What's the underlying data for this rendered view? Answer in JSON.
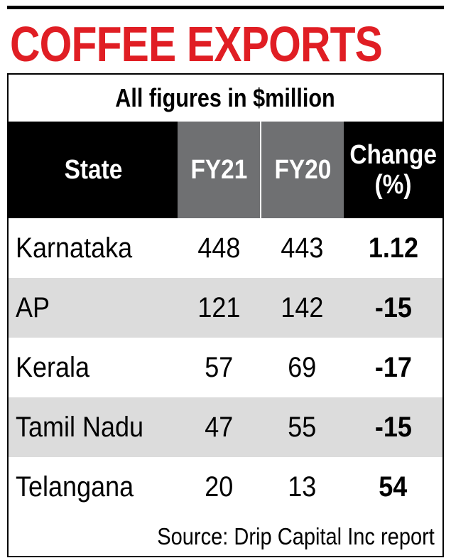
{
  "chart_data": {
    "type": "table",
    "title": "COFFEE EXPORTS",
    "subtitle": "All figures in $million",
    "columns": [
      "State",
      "FY21",
      "FY20",
      "Change (%)"
    ],
    "columns_display": {
      "state": "State",
      "fy21": "FY21",
      "fy20": "FY20",
      "change_line1": "Change",
      "change_line2": "(%)"
    },
    "rows": [
      {
        "state": "Karnataka",
        "fy21": "448",
        "fy20": "443",
        "change": "1.12"
      },
      {
        "state": "AP",
        "fy21": "121",
        "fy20": "142",
        "change": "-15"
      },
      {
        "state": "Kerala",
        "fy21": "57",
        "fy20": "69",
        "change": "-17"
      },
      {
        "state": "Tamil Nadu",
        "fy21": "47",
        "fy20": "55",
        "change": "-15"
      },
      {
        "state": "Telangana",
        "fy21": "20",
        "fy20": "13",
        "change": "54"
      }
    ],
    "source": "Source: Drip Capital Inc report"
  },
  "colors": {
    "title": "#e01e24",
    "header_dark": "#000000",
    "header_grey": "#6f7072",
    "row_alt": "#dcdcdc"
  }
}
